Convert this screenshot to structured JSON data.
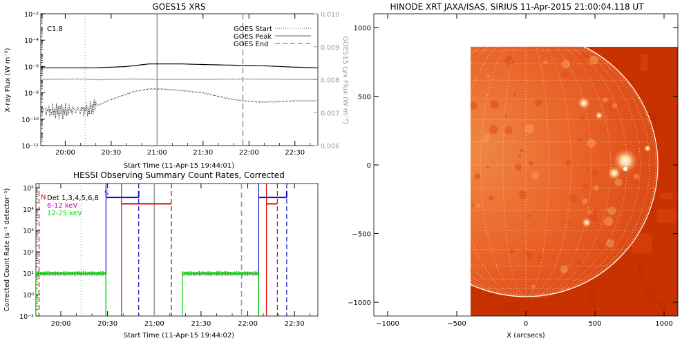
{
  "chart_data": [
    {
      "type": "line",
      "title": "GOES15 XRS",
      "xlabel": "Start Time (11-Apr-15 19:44:01)",
      "ylabel": "X-ray Flux (W m⁻²)",
      "ylabel_right": "GOES15 Lyx Flux (W m⁻²)",
      "annotation": "C1.8",
      "x_ticks": [
        "20:00",
        "20:30",
        "21:00",
        "21:30",
        "22:00",
        "22:30"
      ],
      "x_tick_minutes": [
        0,
        30,
        60,
        90,
        120,
        150
      ],
      "xlim_minutes": [
        -15.98,
        165
      ],
      "y_scale": "log",
      "ylim_exp": [
        -12,
        -2
      ],
      "y_ticks": [
        "10⁻²",
        "10⁻⁴",
        "10⁻⁶",
        "10⁻⁸",
        "10⁻¹⁰",
        "10⁻¹²"
      ],
      "y_tick_exps": [
        -2,
        -4,
        -6,
        -8,
        -10,
        -12
      ],
      "y2lim": [
        0.006,
        0.01
      ],
      "y2_ticks": [
        "0.010",
        "0.009",
        "0.008",
        "0.007",
        "0.006"
      ],
      "y2_tick_values": [
        0.01,
        0.009,
        0.008,
        0.007,
        0.006
      ],
      "legend": [
        "GOES Start",
        "GOES Peak",
        "GOES End"
      ],
      "markers_minutes": {
        "start": 13,
        "peak": 60,
        "end": 116
      },
      "series": [
        {
          "style": "solid-black",
          "x": [
            -16,
            0,
            20,
            40,
            55,
            62,
            75,
            90,
            110,
            130,
            150,
            165
          ],
          "log_y": [
            -6.1,
            -6.1,
            -6.1,
            -6.0,
            -5.8,
            -5.8,
            -5.8,
            -5.85,
            -5.9,
            -5.95,
            -6.05,
            -6.1
          ]
        },
        {
          "style": "dotted-black",
          "x": [
            -16,
            -5,
            5,
            15,
            20,
            30,
            45,
            55,
            62,
            75,
            90,
            105,
            115,
            130,
            150,
            165
          ],
          "log_y": [
            -9.3,
            -9.4,
            -9.3,
            -9.3,
            -9.0,
            -8.5,
            -7.9,
            -7.7,
            -7.7,
            -7.8,
            -8.0,
            -8.4,
            -8.6,
            -8.7,
            -8.6,
            -8.6
          ]
        },
        {
          "style": "solid-gray",
          "x": [
            -16,
            10,
            20,
            30,
            45,
            60,
            90,
            120,
            150,
            165
          ],
          "y2": [
            0.00801,
            0.00802,
            0.008,
            0.00801,
            0.00802,
            0.00801,
            0.00801,
            0.00802,
            0.00801,
            0.00801
          ]
        }
      ]
    },
    {
      "type": "line",
      "title": "HESSI Observing Summary Count Rates, Corrected",
      "xlabel": "Start Time (11-Apr-15 19:44:02)",
      "ylabel": "Corrected Count Rate (s⁻¹ detector⁻¹)",
      "x_ticks": [
        "20:00",
        "20:30",
        "21:00",
        "21:30",
        "22:00",
        "22:30"
      ],
      "x_tick_minutes": [
        0,
        30,
        60,
        90,
        120,
        150
      ],
      "xlim_minutes": [
        -15.98,
        165
      ],
      "y_scale": "log",
      "ylim_exp": [
        -1,
        5
      ],
      "y_ticks": [
        "10⁵",
        "10⁴",
        "10³",
        "10²",
        "10¹",
        "10⁰",
        "10⁻¹"
      ],
      "y_tick_exps": [
        5,
        4,
        3,
        2,
        1,
        0,
        -1
      ],
      "flags": [
        "N",
        "S"
      ],
      "legend": [
        "Det 1,3,4,5,6,8",
        "6-12 keV",
        "12-25 keV"
      ],
      "legend_colors": [
        "#000000",
        "#c800c8",
        "#00d800"
      ],
      "markers_minutes": {
        "start": 13,
        "peak": 60,
        "end": 116
      },
      "series": [
        {
          "name": "12-25 keV",
          "color": "#00d800",
          "segments": [
            [
              -16,
              29,
              1.0,
              "#00d800"
            ],
            [
              78,
              127,
              1.0,
              "#00d800"
            ]
          ]
        }
      ],
      "night_red_solid_minutes": [
        39,
        132
      ],
      "night_red_dashed_minutes": [
        -14,
        71,
        139
      ],
      "saa_blue_solid_minutes": [
        29,
        127
      ],
      "saa_blue_dashed_minutes": [
        50,
        145
      ]
    }
  ],
  "image": {
    "title": "HINODE XRT JAXA/ISAS, SIRIUS 11-Apr-2015 21:00:04.118 UT",
    "xlabel": "X (arcsecs)",
    "x_ticks": [
      "−1000",
      "−500",
      "0",
      "500",
      "1000"
    ],
    "x_tick_values": [
      -1000,
      -500,
      0,
      500,
      1000
    ],
    "y_ticks": [
      "1000",
      "500",
      "0",
      "−500",
      "−1000"
    ],
    "y_tick_values": [
      1000,
      500,
      0,
      -500,
      -1000
    ],
    "xlim": [
      -1100,
      1100
    ],
    "ylim": [
      -1100,
      1100
    ],
    "solar_radius_arcsec": 955,
    "fov_arcsec": {
      "x": [
        -400,
        1100
      ],
      "y": [
        -1100,
        860
      ]
    },
    "colors": {
      "disk": "#e6531e",
      "bright": "#fff2dc",
      "dark": "#c83200",
      "limb": "#ffffff",
      "grid": "#ffd8c0"
    }
  }
}
